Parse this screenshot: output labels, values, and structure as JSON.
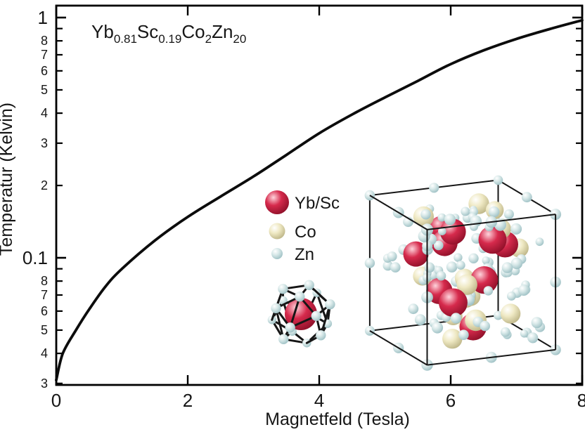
{
  "title": {
    "text": "Yb0.81Sc0.19Co2Zn20",
    "segments": [
      {
        "main": "Yb",
        "sub": "0.81"
      },
      {
        "main": "Sc",
        "sub": "0.19"
      },
      {
        "main": "Co",
        "sub": "2"
      },
      {
        "main": "Zn",
        "sub": "20"
      }
    ]
  },
  "chart_data": {
    "type": "line",
    "title": "Yb0.81Sc0.19Co2Zn20",
    "xlabel": "Magnetfeld (Tesla)",
    "ylabel": "Temperatur (Kelvin)",
    "xlim": [
      0,
      8
    ],
    "ylim": [
      0.03,
      1.12
    ],
    "yscale": "log",
    "grid": false,
    "legend_position": "center",
    "x_ticks": [
      {
        "v": 0,
        "label": "0"
      },
      {
        "v": 2,
        "label": "2"
      },
      {
        "v": 4,
        "label": "4"
      },
      {
        "v": 6,
        "label": "6"
      },
      {
        "v": 8,
        "label": "8"
      }
    ],
    "y_ticks": [
      {
        "v": 1.0,
        "label": "1",
        "major": true
      },
      {
        "v": 0.9
      },
      {
        "v": 0.8,
        "label": "8"
      },
      {
        "v": 0.7,
        "label": "7"
      },
      {
        "v": 0.6,
        "label": "6"
      },
      {
        "v": 0.5,
        "label": "5"
      },
      {
        "v": 0.4,
        "label": "4"
      },
      {
        "v": 0.3,
        "label": "3"
      },
      {
        "v": 0.2,
        "label": "2"
      },
      {
        "v": 0.1,
        "label": "0.1",
        "major": true
      },
      {
        "v": 0.09
      },
      {
        "v": 0.08,
        "label": "8"
      },
      {
        "v": 0.07,
        "label": "7"
      },
      {
        "v": 0.06,
        "label": "6"
      },
      {
        "v": 0.05,
        "label": "5"
      },
      {
        "v": 0.04,
        "label": "4"
      },
      {
        "v": 0.03,
        "label": "3"
      }
    ],
    "series": [
      {
        "x": [
          0,
          0.1,
          0.3,
          0.5,
          0.75,
          1.0,
          1.5,
          2.0,
          2.5,
          3.0,
          3.5,
          4.0,
          4.5,
          5.0,
          5.5,
          6.0,
          6.5,
          7.0,
          7.5,
          8.0
        ],
        "y": [
          0.031,
          0.04,
          0.05,
          0.061,
          0.076,
          0.09,
          0.118,
          0.148,
          0.18,
          0.218,
          0.268,
          0.33,
          0.395,
          0.465,
          0.545,
          0.64,
          0.73,
          0.815,
          0.895,
          0.975
        ]
      }
    ]
  },
  "legend": {
    "items": [
      {
        "label": "Yb/Sc",
        "species": "yb"
      },
      {
        "label": "Co",
        "species": "co"
      },
      {
        "label": "Zn",
        "species": "zn"
      }
    ]
  },
  "insets": {
    "cluster": {
      "zn_vertices": 16,
      "center_species": "yb"
    },
    "unit_cell": {
      "zn_interior": 100,
      "co_atoms": 16,
      "yb_atoms": 11
    }
  },
  "colors": {
    "curve": "#0c0c0c",
    "axis": "#000000",
    "bond": "#161616",
    "yb_highlight": "#ffd4dc",
    "yb_mid": "#d62a4c",
    "yb_dark": "#8f1029",
    "co_highlight": "#ffffff",
    "co_mid": "#efe9c4",
    "co_dark": "#bdb587",
    "zn_highlight": "#ffffff",
    "zn_mid": "#d7e8e8",
    "zn_dark": "#9dc0c4"
  }
}
